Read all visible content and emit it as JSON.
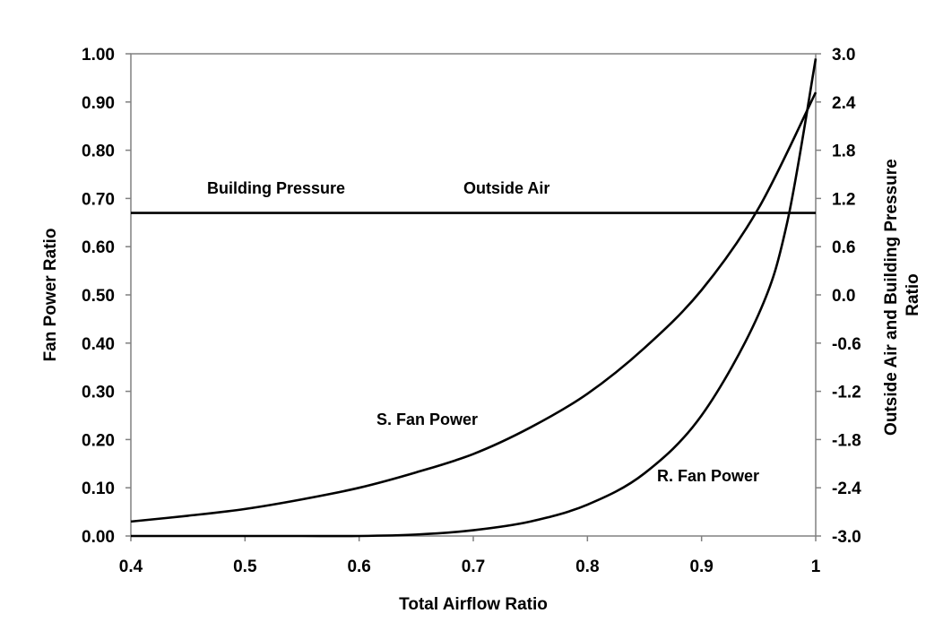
{
  "chart_data": {
    "type": "line",
    "xlabel": "Total Airflow Ratio",
    "ylabel": "Fan Power Ratio",
    "y2label": [
      "Outside Air and Building Pressure",
      "Ratio"
    ],
    "xlim": [
      0.4,
      1.0
    ],
    "ylim": [
      0.0,
      1.0
    ],
    "y2lim": [
      -3.0,
      3.0
    ],
    "x_ticks": [
      "0.4",
      "0.5",
      "0.6",
      "0.7",
      "0.8",
      "0.9",
      "1"
    ],
    "y_ticks": [
      "0.00",
      "0.10",
      "0.20",
      "0.30",
      "0.40",
      "0.50",
      "0.60",
      "0.70",
      "0.80",
      "0.90",
      "1.00"
    ],
    "y2_ticks": [
      "-3.0",
      "-2.4",
      "-1.8",
      "-1.2",
      "-0.6",
      "0.0",
      "0.6",
      "1.2",
      "1.8",
      "2.4",
      "3.0"
    ],
    "grid": false,
    "series": [
      {
        "name": "S. Fan Power",
        "axis": "left",
        "x": [
          0.4,
          0.45,
          0.5,
          0.55,
          0.6,
          0.65,
          0.7,
          0.75,
          0.8,
          0.85,
          0.9,
          0.95,
          1.0
        ],
        "y": [
          0.03,
          0.042,
          0.056,
          0.076,
          0.1,
          0.132,
          0.17,
          0.225,
          0.295,
          0.39,
          0.51,
          0.68,
          0.92
        ]
      },
      {
        "name": "R. Fan Power",
        "axis": "left",
        "x": [
          0.4,
          0.5,
          0.55,
          0.6,
          0.65,
          0.7,
          0.75,
          0.8,
          0.85,
          0.9,
          0.95,
          0.975,
          1.0
        ],
        "y": [
          0.0,
          0.0,
          0.0,
          0.0,
          0.003,
          0.012,
          0.03,
          0.065,
          0.13,
          0.25,
          0.46,
          0.65,
          0.99
        ]
      },
      {
        "name": "Outside Air / Building Pressure",
        "axis": "right",
        "x": [
          0.4,
          1.0
        ],
        "y": [
          1.02,
          1.02
        ]
      }
    ],
    "annotations": {
      "building_pressure": "Building Pressure",
      "outside_air": "Outside Air",
      "s_fan_power": "S. Fan Power",
      "r_fan_power": "R. Fan Power"
    }
  }
}
